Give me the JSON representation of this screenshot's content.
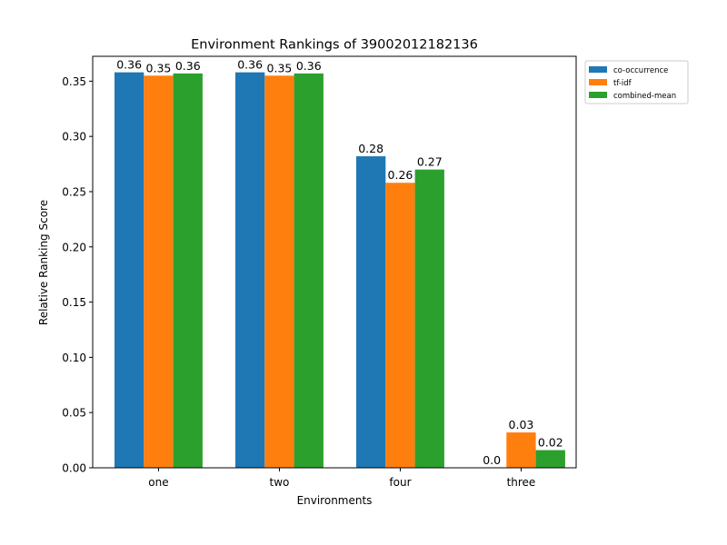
{
  "chart_data": {
    "type": "bar",
    "title": "Environment Rankings of 39002012182136",
    "xlabel": "Environments",
    "ylabel": "Relative Ranking Score",
    "categories": [
      "one",
      "two",
      "four",
      "three"
    ],
    "series": [
      {
        "name": "co-occurrence",
        "color": "#1f77b4",
        "values": [
          0.358,
          0.358,
          0.282,
          0.0
        ],
        "labels": [
          "0.36",
          "0.36",
          "0.28",
          "0.0"
        ]
      },
      {
        "name": "tf-idf",
        "color": "#ff7f0e",
        "values": [
          0.355,
          0.355,
          0.258,
          0.032
        ],
        "labels": [
          "0.35",
          "0.35",
          "0.26",
          "0.03"
        ]
      },
      {
        "name": "combined-mean",
        "color": "#2ca02c",
        "values": [
          0.357,
          0.357,
          0.27,
          0.016
        ],
        "labels": [
          "0.36",
          "0.36",
          "0.27",
          "0.02"
        ]
      }
    ],
    "ylim": [
      0,
      0.3725
    ],
    "yticks": [
      "0.00",
      "0.05",
      "0.10",
      "0.15",
      "0.20",
      "0.25",
      "0.30",
      "0.35"
    ],
    "legend_position": "outside-top-right",
    "grid": false
  }
}
